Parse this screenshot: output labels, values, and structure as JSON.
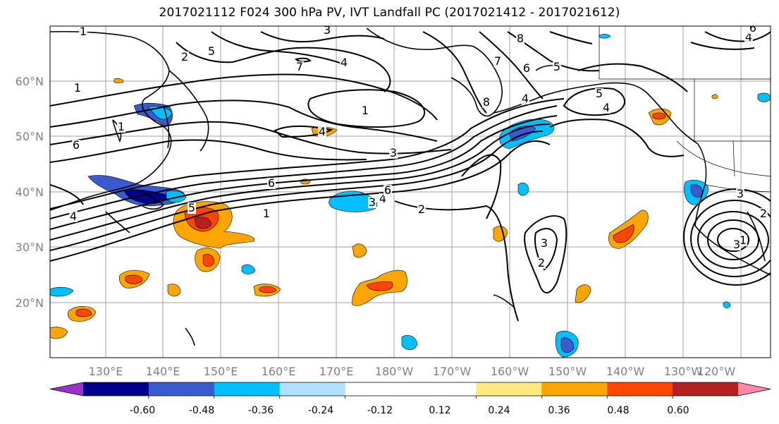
{
  "title": "2017021112 F024 300 hPa PV, IVT Landfall PC (2017021412 - 2017021612)",
  "lat_labels": [
    "60°N",
    "50°N",
    "40°N",
    "30°N",
    "20°N"
  ],
  "lon_labels": [
    "130°E",
    "140°E",
    "150°E",
    "160°E",
    "170°E",
    "180°W",
    "170°W",
    "160°W",
    "150°W",
    "140°W",
    "130°W",
    "120°W"
  ],
  "colorbar": {
    "colors": [
      "#9932CC",
      "#00008B",
      "#3A5BCD",
      "#00BFFF",
      "#B0E0FF",
      "#FFFFFF",
      "#FFFFFF",
      "#FFE880",
      "#FFA500",
      "#FF4500",
      "#B22222",
      "#FF88AA"
    ],
    "tick_labels": [
      "-0.60",
      "-0.48",
      "-0.36",
      "-0.24",
      "-0.12",
      "0.12",
      "0.24",
      "0.36",
      "0.48",
      "0.60"
    ]
  },
  "contour_labels": [
    "1",
    "2",
    "3",
    "4",
    "5",
    "6",
    "7",
    "8",
    "1",
    "6",
    "5",
    "4",
    "3",
    "2",
    "1",
    "4",
    "3",
    "6",
    "5",
    "4",
    "1",
    "2",
    "3",
    "8",
    "7",
    "6",
    "5",
    "4",
    "3",
    "2",
    "1",
    "2",
    "3",
    "5",
    "4",
    "6",
    "1",
    "4",
    "3",
    "2",
    "5",
    "6"
  ]
}
